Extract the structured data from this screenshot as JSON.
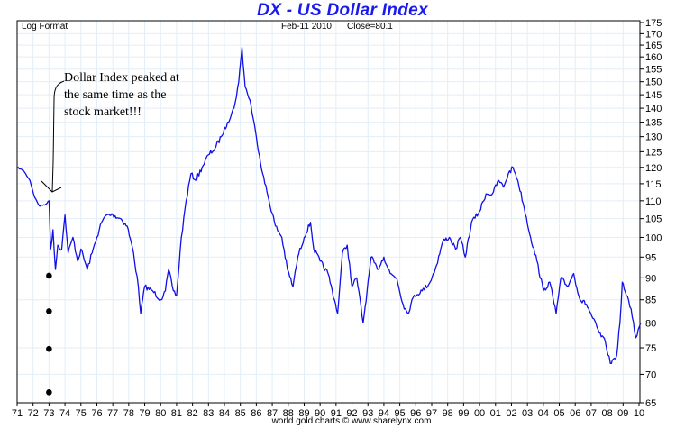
{
  "title": "DX  -  US Dollar Index",
  "header": {
    "scale_label": "Log Format",
    "date_label": "Feb-11  2010",
    "close_label": "Close=80.1"
  },
  "annotation": {
    "lines": [
      "Dollar Index peaked at",
      "the same time as the",
      "stock market!!!"
    ]
  },
  "footer": "world gold charts © www.sharelynx.com",
  "colors": {
    "line": "#1010e8",
    "grid": "#e3eef7",
    "title": "#1a1af0"
  },
  "chart_data": {
    "type": "line",
    "title": "DX  -  US Dollar Index",
    "subtitle": "Feb-11 2010  Close=80.1",
    "xlabel": "",
    "ylabel": "",
    "yscale": "log",
    "ylim": [
      65,
      175
    ],
    "xlim": [
      1971,
      2010.1
    ],
    "grid": true,
    "y_ticks": [
      65,
      70,
      75,
      80,
      85,
      90,
      95,
      100,
      105,
      110,
      115,
      120,
      125,
      130,
      135,
      140,
      145,
      150,
      155,
      160,
      165,
      170,
      175
    ],
    "x_ticks": [
      "71",
      "72",
      "73",
      "74",
      "75",
      "76",
      "77",
      "78",
      "79",
      "80",
      "81",
      "82",
      "83",
      "84",
      "85",
      "86",
      "87",
      "88",
      "89",
      "90",
      "91",
      "92",
      "93",
      "94",
      "95",
      "96",
      "97",
      "98",
      "99",
      "00",
      "01",
      "02",
      "03",
      "04",
      "05",
      "06",
      "07",
      "08",
      "09",
      "10"
    ],
    "series": [
      {
        "name": "DX",
        "x": [
          1971.0,
          1971.4,
          1971.8,
          1972.1,
          1972.4,
          1972.8,
          1973.0,
          1973.1,
          1973.25,
          1973.4,
          1973.55,
          1973.8,
          1974.0,
          1974.2,
          1974.5,
          1974.8,
          1975.0,
          1975.4,
          1975.7,
          1976.0,
          1976.3,
          1976.6,
          1977.0,
          1977.5,
          1977.9,
          1978.3,
          1978.6,
          1978.75,
          1979.0,
          1979.5,
          1980.0,
          1980.3,
          1980.5,
          1980.8,
          1981.0,
          1981.3,
          1981.6,
          1981.9,
          1982.2,
          1982.6,
          1983.0,
          1983.4,
          1983.8,
          1984.2,
          1984.6,
          1984.9,
          1985.1,
          1985.3,
          1985.6,
          1986.0,
          1986.4,
          1986.8,
          1987.2,
          1987.6,
          1987.95,
          1988.3,
          1988.6,
          1989.0,
          1989.4,
          1989.6,
          1990.0,
          1990.5,
          1990.9,
          1991.1,
          1991.4,
          1991.7,
          1992.0,
          1992.3,
          1992.7,
          1992.95,
          1993.2,
          1993.6,
          1994.0,
          1994.4,
          1994.8,
          1995.2,
          1995.5,
          1995.9,
          1996.4,
          1996.9,
          1997.3,
          1997.7,
          1998.1,
          1998.5,
          1998.8,
          1999.1,
          1999.5,
          2000.0,
          2000.4,
          2000.8,
          2001.2,
          2001.5,
          2001.8,
          2002.1,
          2002.4,
          2002.8,
          2003.2,
          2003.6,
          2004.0,
          2004.4,
          2004.8,
          2005.1,
          2005.5,
          2005.9,
          2006.3,
          2006.7,
          2007.1,
          2007.5,
          2007.9,
          2008.2,
          2008.45,
          2008.6,
          2008.8,
          2008.95,
          2009.2,
          2009.5,
          2009.8,
          2010.1
        ],
        "values": [
          120,
          119,
          116,
          111,
          108.5,
          109,
          110,
          97,
          102,
          92,
          98,
          97,
          106,
          96,
          100,
          94,
          97,
          92,
          96,
          100,
          104,
          106,
          106,
          105,
          103,
          96,
          88,
          82,
          88,
          87,
          85,
          87,
          92,
          87,
          86,
          100,
          110,
          118,
          116,
          120,
          124,
          126,
          130,
          135,
          140,
          150,
          164,
          148,
          143,
          130,
          118,
          110,
          103,
          100,
          92,
          88,
          95,
          100,
          104,
          97,
          94,
          91,
          85,
          82,
          96,
          98,
          88,
          90,
          80,
          87,
          95,
          92,
          95,
          91,
          90,
          84,
          82,
          86,
          87,
          89,
          93,
          99,
          100,
          97,
          100,
          95,
          104,
          107,
          112,
          112,
          116,
          114,
          118,
          120,
          116,
          108,
          100,
          94,
          87,
          89,
          82,
          90,
          88,
          91,
          85,
          84,
          81,
          78,
          76,
          72,
          73,
          73.5,
          80,
          89,
          86,
          83,
          77,
          80
        ]
      }
    ],
    "markers": [
      {
        "x": 1973.0,
        "y": 90.5
      },
      {
        "x": 1973.0,
        "y": 82.5
      },
      {
        "x": 1973.0,
        "y": 74.8
      },
      {
        "x": 1973.0,
        "y": 66.8
      }
    ]
  }
}
